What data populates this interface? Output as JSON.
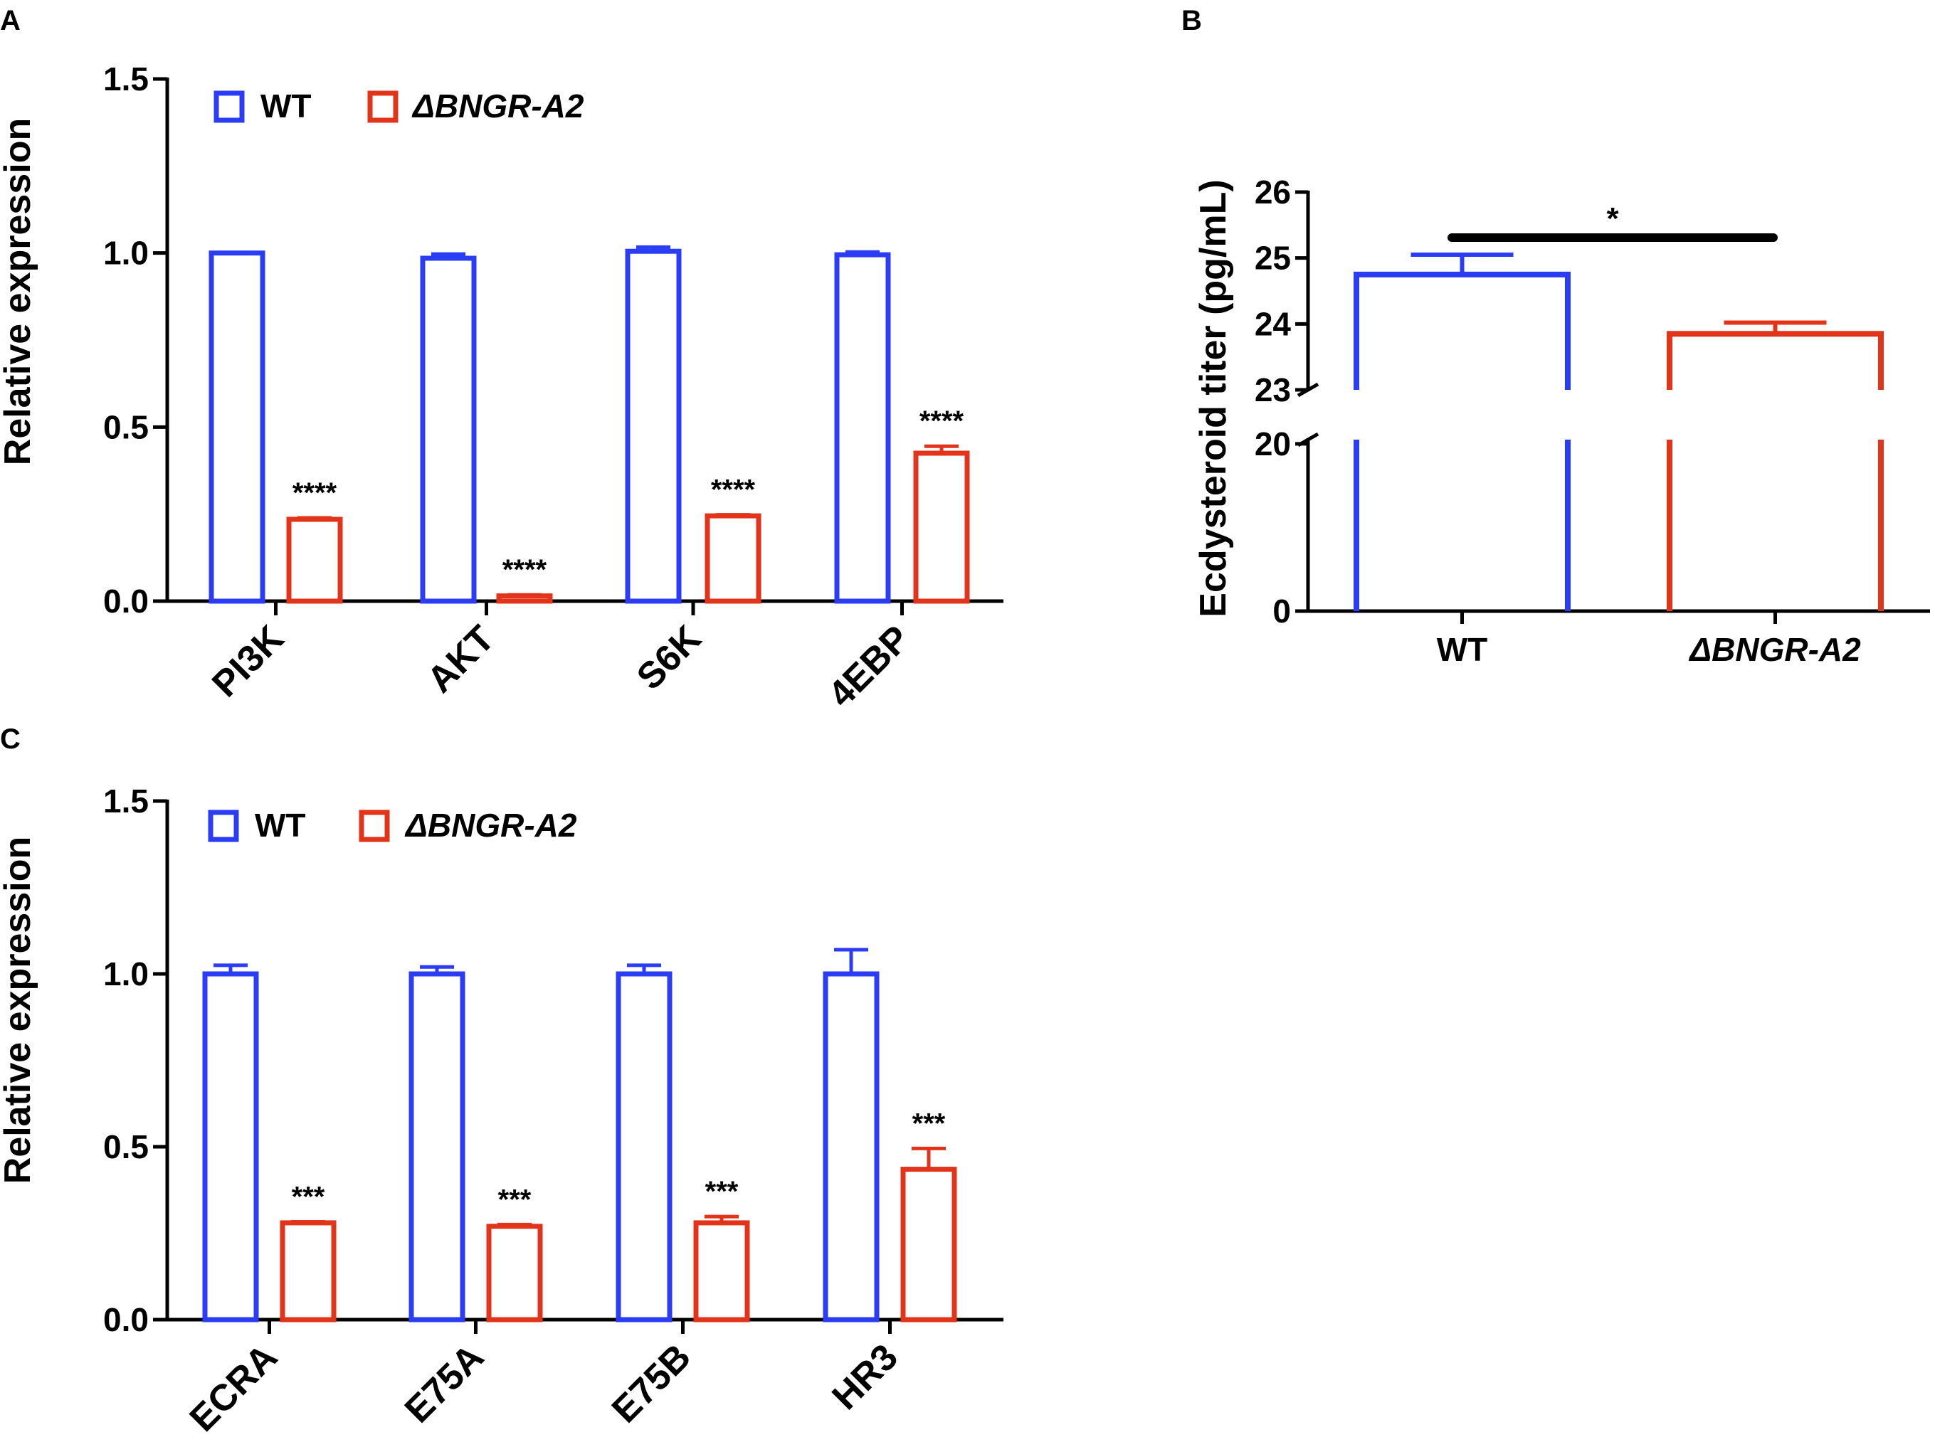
{
  "colors": {
    "wt": "#2b3cf5",
    "mutant": "#e2331b",
    "axis": "#000000",
    "text": "#000000"
  },
  "chart_data": [
    {
      "panel": "A",
      "type": "bar",
      "ylabel": "Relative expression",
      "ylim": [
        0,
        1.5
      ],
      "yticks": [
        "0.0",
        "0.5",
        "1.0",
        "1.5"
      ],
      "categories": [
        "PI3K",
        "AKT",
        "S6K",
        "4EBP"
      ],
      "legend": [
        "WT",
        "ΔBNGR-A2"
      ],
      "series": [
        {
          "name": "WT",
          "values": [
            1.0,
            0.985,
            1.005,
            0.995
          ],
          "errors": [
            0,
            0.012,
            0.012,
            0.008
          ]
        },
        {
          "name": "ΔBNGR-A2",
          "values": [
            0.235,
            0.015,
            0.245,
            0.425
          ],
          "errors": [
            0.004,
            0.003,
            0.003,
            0.02
          ]
        }
      ],
      "annotations": [
        "****",
        "****",
        "****",
        "****"
      ]
    },
    {
      "panel": "B",
      "type": "bar",
      "ylabel": "Ecdysteroid titer (pg/mL)",
      "ylim": [
        0,
        26
      ],
      "axis_break": [
        20.5,
        23
      ],
      "yticks_lower": [
        "0",
        "20"
      ],
      "yticks_upper": [
        "23",
        "24",
        "25",
        "26"
      ],
      "categories": [
        "WT",
        "ΔBNGR-A2"
      ],
      "series": [
        {
          "name": "Ecdysteroid titer",
          "values": [
            24.75,
            23.85
          ],
          "errors": [
            0.3,
            0.17
          ]
        }
      ],
      "annotations": [
        "*"
      ]
    },
    {
      "panel": "C",
      "type": "bar",
      "ylabel": "Relative expression",
      "ylim": [
        0,
        1.5
      ],
      "yticks": [
        "0.0",
        "0.5",
        "1.0",
        "1.5"
      ],
      "categories": [
        "ECRA",
        "E75A",
        "E75B",
        "HR3"
      ],
      "legend": [
        "WT",
        "ΔBNGR-A2"
      ],
      "series": [
        {
          "name": "WT",
          "values": [
            1.0,
            1.0,
            1.0,
            1.0
          ],
          "errors": [
            0.025,
            0.02,
            0.025,
            0.07
          ]
        },
        {
          "name": "ΔBNGR-A2",
          "values": [
            0.28,
            0.27,
            0.28,
            0.435
          ],
          "errors": [
            0.003,
            0.005,
            0.018,
            0.06
          ]
        }
      ],
      "annotations": [
        "***",
        "***",
        "***",
        "***"
      ]
    }
  ]
}
